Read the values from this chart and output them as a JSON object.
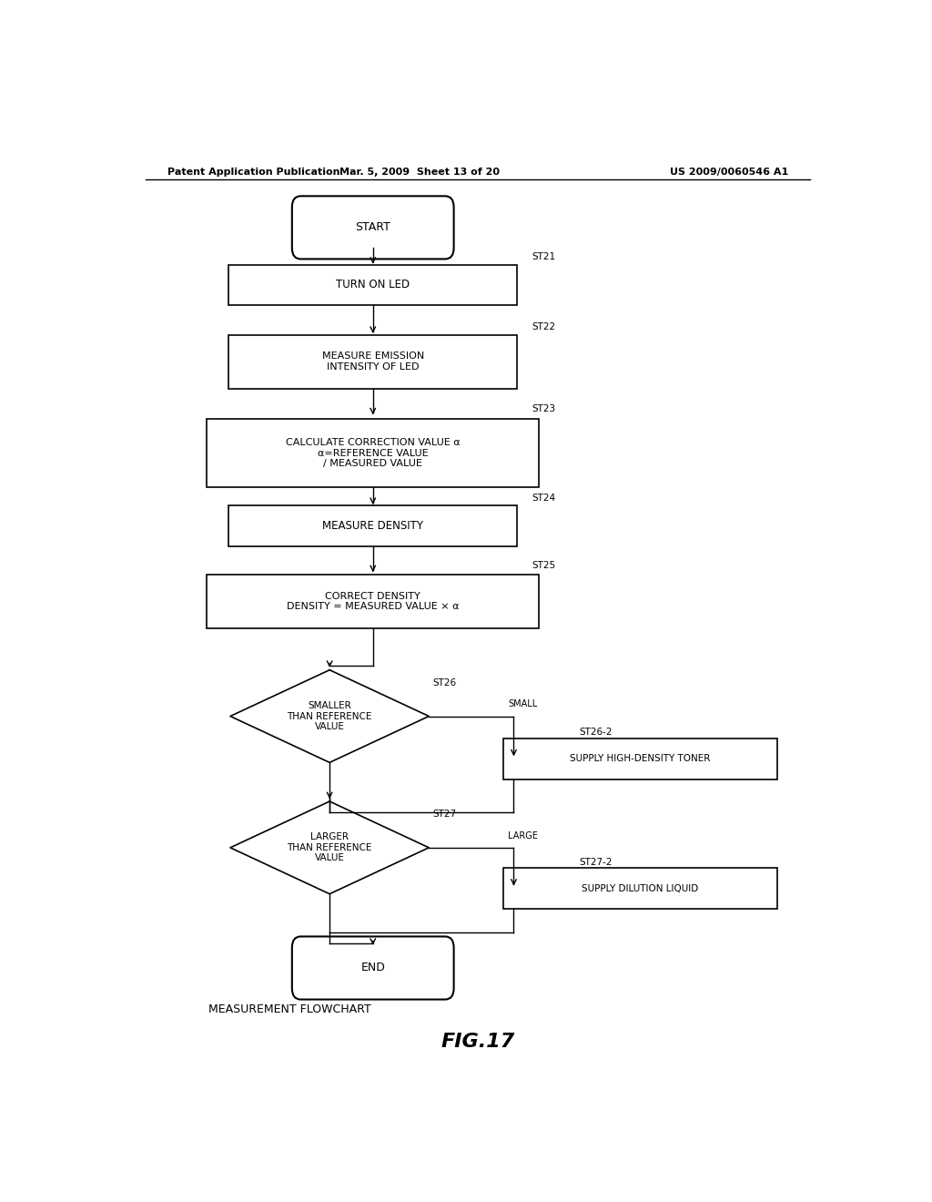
{
  "title": "MEASUREMENT FLOWCHART",
  "fig_label": "FIG.17",
  "header_left": "Patent Application Publication",
  "header_mid": "Mar. 5, 2009  Sheet 13 of 20",
  "header_right": "US 2009/0060546 A1",
  "bg_color": "#ffffff",
  "line_color": "#000000",
  "font_size_node": 8,
  "font_size_label": 7.5,
  "font_size_header": 8,
  "font_size_title": 9,
  "font_size_fig": 16
}
